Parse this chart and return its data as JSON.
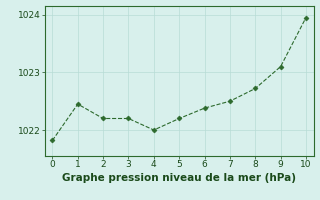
{
  "x": [
    0,
    1,
    2,
    3,
    4,
    5,
    6,
    7,
    8,
    9,
    10
  ],
  "y": [
    1021.82,
    1022.45,
    1022.2,
    1022.2,
    1022.0,
    1022.2,
    1022.38,
    1022.5,
    1022.72,
    1023.1,
    1023.95
  ],
  "line_color": "#2d6a2d",
  "marker": "D",
  "marker_size": 2.5,
  "line_style": "--",
  "line_width": 0.8,
  "background_color": "#d8f0ec",
  "grid_color": "#b8dcd6",
  "xlabel": "Graphe pression niveau de la mer (hPa)",
  "xlabel_fontsize": 7.5,
  "xlabel_color": "#1a4a1a",
  "yticks": [
    1022,
    1023,
    1024
  ],
  "xticks": [
    0,
    1,
    2,
    3,
    4,
    5,
    6,
    7,
    8,
    9,
    10
  ],
  "ylim": [
    1021.55,
    1024.15
  ],
  "xlim": [
    -0.3,
    10.3
  ],
  "tick_fontsize": 6.5,
  "tick_color": "#1a4a1a",
  "spine_color": "#2d6a2d"
}
